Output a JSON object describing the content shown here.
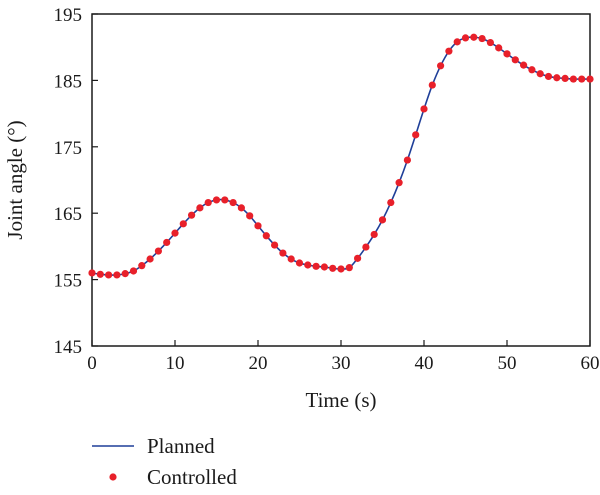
{
  "chart_data": {
    "type": "line",
    "xlabel": "Time (s)",
    "ylabel": "Joint angle (°)",
    "xlim": [
      0,
      60
    ],
    "ylim": [
      145,
      195
    ],
    "xticks": [
      0,
      10,
      20,
      30,
      40,
      50,
      60
    ],
    "yticks": [
      145,
      155,
      165,
      175,
      185,
      195
    ],
    "grid": false,
    "legend_position": "bottom-left, below plot",
    "series": [
      {
        "name": "Planned",
        "style": "line",
        "color": "#1f3f99",
        "x": [
          0,
          1,
          2,
          3,
          4,
          5,
          6,
          7,
          8,
          9,
          10,
          11,
          12,
          13,
          14,
          15,
          16,
          17,
          18,
          19,
          20,
          21,
          22,
          23,
          24,
          25,
          26,
          27,
          28,
          29,
          30,
          31,
          32,
          33,
          34,
          35,
          36,
          37,
          38,
          39,
          40,
          41,
          42,
          43,
          44,
          45,
          46,
          47,
          48,
          49,
          50,
          51,
          52,
          53,
          54,
          55,
          56,
          57,
          58,
          59,
          60
        ],
        "y": [
          156.0,
          155.8,
          155.7,
          155.7,
          155.9,
          156.3,
          157.1,
          158.1,
          159.3,
          160.6,
          162.0,
          163.4,
          164.7,
          165.8,
          166.6,
          167.0,
          167.0,
          166.6,
          165.8,
          164.6,
          163.1,
          161.6,
          160.2,
          159.0,
          158.1,
          157.5,
          157.2,
          157.0,
          156.9,
          156.7,
          156.6,
          156.8,
          158.2,
          159.9,
          161.8,
          164.0,
          166.6,
          169.6,
          173.0,
          176.8,
          180.7,
          184.3,
          187.2,
          189.4,
          190.8,
          191.4,
          191.5,
          191.3,
          190.7,
          189.9,
          189.0,
          188.1,
          187.3,
          186.6,
          186.0,
          185.6,
          185.4,
          185.3,
          185.2,
          185.2,
          185.2
        ]
      },
      {
        "name": "Controlled",
        "style": "markers",
        "color": "#e8202a",
        "x": [
          0,
          1,
          2,
          3,
          4,
          5,
          6,
          7,
          8,
          9,
          10,
          11,
          12,
          13,
          14,
          15,
          16,
          17,
          18,
          19,
          20,
          21,
          22,
          23,
          24,
          25,
          26,
          27,
          28,
          29,
          30,
          31,
          32,
          33,
          34,
          35,
          36,
          37,
          38,
          39,
          40,
          41,
          42,
          43,
          44,
          45,
          46,
          47,
          48,
          49,
          50,
          51,
          52,
          53,
          54,
          55,
          56,
          57,
          58,
          59,
          60
        ],
        "y": [
          156.0,
          155.8,
          155.7,
          155.7,
          155.9,
          156.3,
          157.1,
          158.1,
          159.3,
          160.6,
          162.0,
          163.4,
          164.7,
          165.8,
          166.6,
          167.0,
          167.0,
          166.6,
          165.8,
          164.6,
          163.1,
          161.6,
          160.2,
          159.0,
          158.1,
          157.5,
          157.2,
          157.0,
          156.9,
          156.7,
          156.6,
          156.8,
          158.2,
          159.9,
          161.8,
          164.0,
          166.6,
          169.6,
          173.0,
          176.8,
          180.7,
          184.3,
          187.2,
          189.4,
          190.8,
          191.4,
          191.5,
          191.3,
          190.7,
          189.9,
          189.0,
          188.1,
          187.3,
          186.6,
          186.0,
          185.6,
          185.4,
          185.3,
          185.2,
          185.2,
          185.2
        ]
      }
    ]
  },
  "legend": {
    "planned_label": "Planned",
    "controlled_label": "Controlled"
  }
}
